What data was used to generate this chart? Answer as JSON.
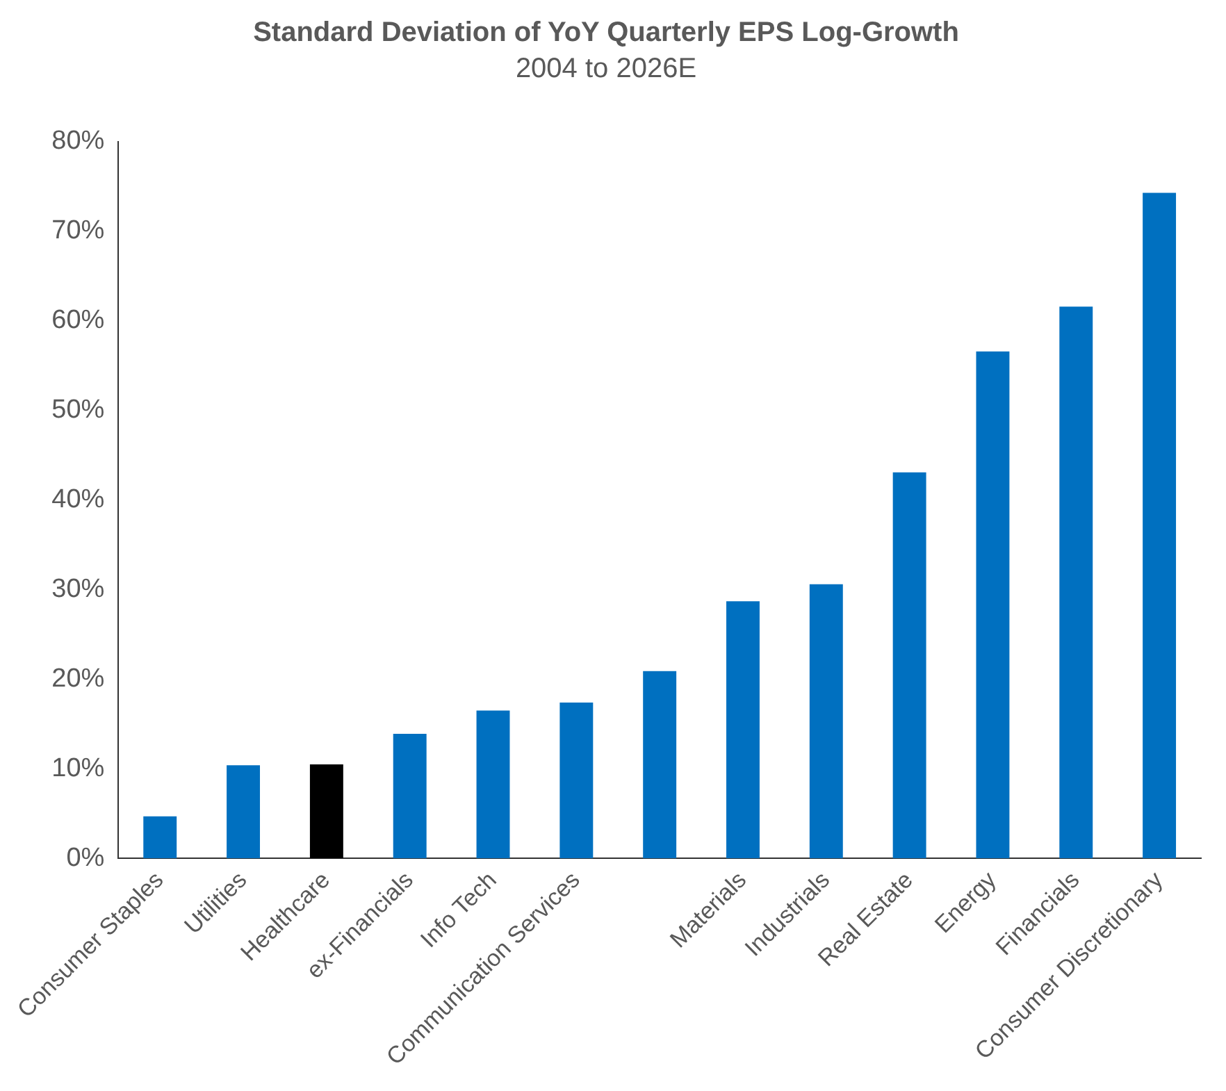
{
  "chart_data": {
    "type": "bar",
    "title": "Standard Deviation of YoY Quarterly EPS Log-Growth",
    "subtitle": "2004 to 2026E",
    "categories": [
      "Consumer Staples",
      "Utilities",
      "Healthcare",
      "ex-Financials",
      "Info Tech",
      "Communication Services",
      null,
      "Materials",
      "Industrials",
      "Real Estate",
      "Energy",
      "Financials",
      "Consumer Discretionary"
    ],
    "values": [
      4.7,
      10.4,
      10.5,
      13.9,
      16.5,
      17.4,
      20.9,
      28.7,
      30.6,
      43.1,
      56.6,
      61.6,
      74.3
    ],
    "colors": [
      "#0070c0",
      "#0070c0",
      "#000000",
      "#0070c0",
      "#0070c0",
      "#0070c0",
      "#0070c0",
      "#0070c0",
      "#0070c0",
      "#0070c0",
      "#0070c0",
      "#0070c0",
      "#0070c0"
    ],
    "ylim": [
      0,
      80
    ],
    "yticks": [
      {
        "value": 0,
        "label": "0%"
      },
      {
        "value": 10,
        "label": "10%"
      },
      {
        "value": 20,
        "label": "20%"
      },
      {
        "value": 30,
        "label": "30%"
      },
      {
        "value": 40,
        "label": "40%"
      },
      {
        "value": 50,
        "label": "50%"
      },
      {
        "value": 60,
        "label": "60%"
      },
      {
        "value": 70,
        "label": "70%"
      },
      {
        "value": 80,
        "label": "80%"
      }
    ],
    "grid": false,
    "legend": false
  }
}
